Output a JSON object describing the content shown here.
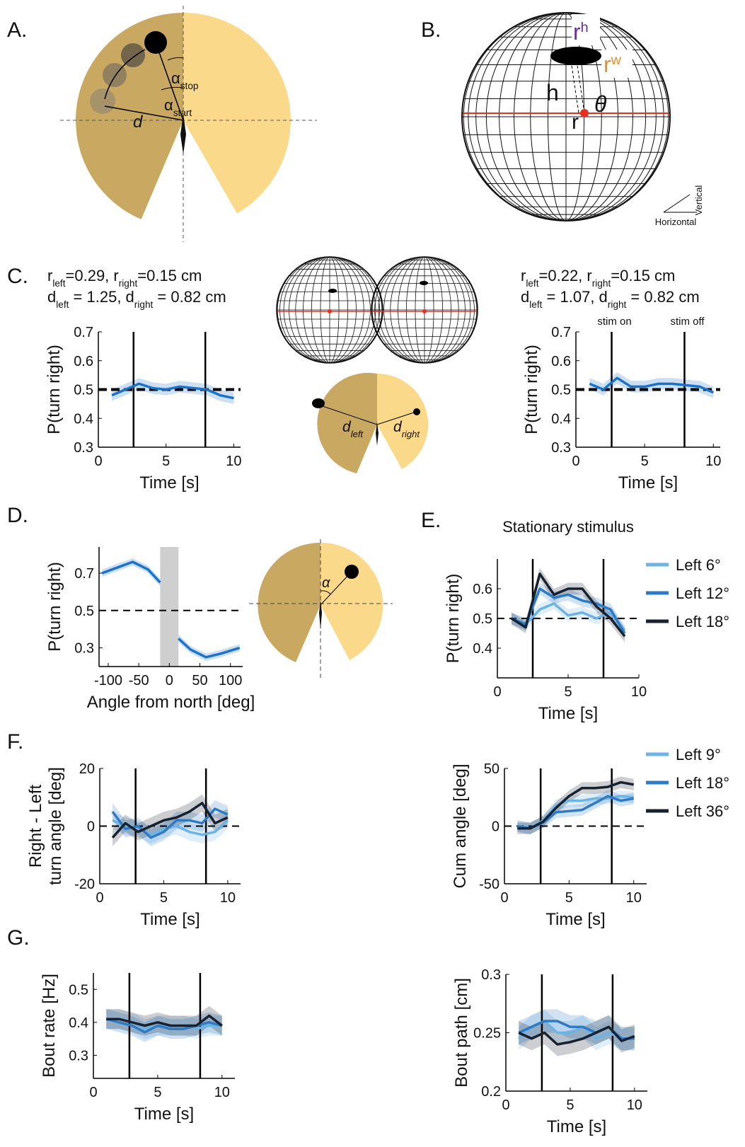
{
  "panel_labels": [
    "A.",
    "B.",
    "C.",
    "D.",
    "E.",
    "F.",
    "G."
  ],
  "panel_a": {
    "distance": "d",
    "alpha_stop": [
      "α",
      "stop"
    ],
    "alpha_start": [
      "α",
      "start"
    ]
  },
  "panel_b": {
    "r_height": [
      "r",
      "h"
    ],
    "r_width": [
      "r",
      "w"
    ],
    "height": "h",
    "theta": "θ",
    "radius": "r",
    "vertical": "Vertical",
    "horizontal": "Horizontal"
  },
  "panel_c": {
    "d_left": [
      "d",
      "left"
    ],
    "d_right": [
      "d",
      "right"
    ]
  },
  "panel_d": {
    "alpha": "α"
  },
  "chart_data": [
    {
      "type": "line",
      "annotation": [
        [
          "r",
          "left",
          "=0.29, r",
          "right",
          "=0.15 cm"
        ],
        [
          "d",
          "left",
          " = 1.25, d",
          "right",
          " = 0.82 cm"
        ]
      ],
      "xlabel": "Time [s]",
      "ylabel": [
        "P(turn right)"
      ],
      "xlim": [
        0,
        10.5
      ],
      "ylim": [
        0.3,
        0.7
      ],
      "xticks": [
        0,
        5,
        10
      ],
      "yticks": [
        0.3,
        0.4,
        0.5,
        0.6,
        0.7
      ],
      "x": [
        1,
        2,
        3,
        4,
        5,
        6,
        7,
        8,
        9,
        10
      ],
      "series": [
        {
          "color": "#1a73c8",
          "values": [
            0.48,
            0.5,
            0.52,
            0.505,
            0.5,
            0.51,
            0.505,
            0.5,
            0.48,
            0.47
          ],
          "error": 0.02
        }
      ],
      "vlines": [
        2.6,
        7.9
      ],
      "hline": 0.5
    },
    {
      "type": "line",
      "annotation": [
        [
          "r",
          "left",
          "=0.22, r",
          "right",
          "=0.15 cm"
        ],
        [
          "d",
          "left",
          " = 1.07, d",
          "right",
          " = 0.82 cm"
        ]
      ],
      "xlabel": "Time [s]",
      "ylabel": [
        "P(turn right)"
      ],
      "xlim": [
        0,
        10.5
      ],
      "ylim": [
        0.3,
        0.7
      ],
      "xticks": [
        0,
        5,
        10
      ],
      "yticks": [
        0.3,
        0.4,
        0.5,
        0.6,
        0.7
      ],
      "x": [
        1,
        2,
        3,
        4,
        5,
        6,
        7,
        8,
        9,
        10
      ],
      "series": [
        {
          "color": "#1a73c8",
          "values": [
            0.52,
            0.5,
            0.54,
            0.51,
            0.51,
            0.52,
            0.52,
            0.515,
            0.51,
            0.49
          ],
          "error": 0.02
        }
      ],
      "vlines": [
        2.6,
        7.9
      ],
      "vline_labels": [
        "stim on",
        "stim off"
      ],
      "hline": 0.5
    },
    {
      "type": "line",
      "xlabel": "Angle from north [deg]",
      "ylabel": [
        "P(turn right)"
      ],
      "xlim": [
        -115,
        120
      ],
      "ylim": [
        0.2,
        0.84
      ],
      "xticks": [
        -100,
        -50,
        0,
        50,
        100
      ],
      "yticks": [
        0.3,
        0.5,
        0.7
      ],
      "x": [
        -110,
        -85,
        -60,
        -35,
        -15,
        0,
        15,
        35,
        60,
        85,
        115
      ],
      "series": [
        {
          "color": "#1a73c8",
          "values": [
            0.7,
            0.73,
            0.76,
            0.72,
            0.65,
            null,
            0.35,
            0.29,
            0.25,
            0.27,
            0.3
          ],
          "error": 0.02
        }
      ],
      "shaded_span": [
        -15,
        15
      ],
      "hline": 0.5
    },
    {
      "type": "line",
      "title": "Stationary stimulus",
      "xlabel": "Time [s]",
      "ylabel": [
        "P(turn right)"
      ],
      "xlim": [
        0,
        10
      ],
      "ylim": [
        0.3,
        0.7
      ],
      "xticks": [
        0,
        5,
        10
      ],
      "yticks": [
        0.4,
        0.5,
        0.6
      ],
      "x": [
        1,
        2,
        3,
        4,
        5,
        6,
        7,
        8,
        9
      ],
      "series": [
        {
          "name": "Left 6°",
          "color": "#6db3e4",
          "values": [
            0.5,
            0.48,
            0.53,
            0.55,
            0.51,
            0.52,
            0.5,
            0.52,
            0.46
          ],
          "error": 0.02
        },
        {
          "name": "Left 12°",
          "color": "#2e7bc4",
          "values": [
            0.5,
            0.48,
            0.6,
            0.57,
            0.58,
            0.56,
            0.55,
            0.53,
            0.45
          ],
          "error": 0.02
        },
        {
          "name": "Left 18°",
          "color": "#18212e",
          "values": [
            0.5,
            0.47,
            0.65,
            0.58,
            0.6,
            0.6,
            0.54,
            0.5,
            0.44
          ],
          "error": 0.02
        }
      ],
      "vlines": [
        2.5,
        7.5
      ],
      "hline": 0.5,
      "legend": "right"
    },
    {
      "type": "line",
      "xlabel": "Time [s]",
      "ylabel": [
        "Right - Left",
        "turn angle [deg]"
      ],
      "xlim": [
        0,
        11
      ],
      "ylim": [
        -20,
        20
      ],
      "xticks": [
        0,
        5,
        10
      ],
      "yticks": [
        -20,
        0,
        20
      ],
      "x": [
        1,
        2,
        3,
        4,
        5,
        6,
        7,
        8,
        9,
        10
      ],
      "series": [
        {
          "color": "#6db3e4",
          "values": [
            2,
            0,
            -1,
            -3,
            -1,
            0,
            -2,
            -3,
            -2,
            2
          ],
          "error": 3
        },
        {
          "color": "#2e7bc4",
          "values": [
            5,
            -1,
            0,
            -4,
            -2,
            2,
            2,
            1,
            6,
            4
          ],
          "error": 3
        },
        {
          "color": "#18212e",
          "values": [
            -4,
            1,
            -2,
            0,
            2,
            3,
            5,
            8,
            1,
            3
          ],
          "error": 3
        }
      ],
      "vlines": [
        2.8,
        8.3
      ],
      "hline": 0
    },
    {
      "type": "line",
      "xlabel": "Time [s]",
      "ylabel": [
        "Cum angle [deg]"
      ],
      "xlim": [
        0,
        11
      ],
      "ylim": [
        -50,
        50
      ],
      "xticks": [
        0,
        5,
        10
      ],
      "yticks": [
        -50,
        0,
        50
      ],
      "x": [
        1,
        2,
        3,
        4,
        5,
        6,
        7,
        8,
        9,
        10
      ],
      "series": [
        {
          "name": "Left 9°",
          "color": "#6db3e4",
          "values": [
            0,
            -2,
            5,
            18,
            22,
            22,
            24,
            24,
            26,
            25
          ],
          "error": 5
        },
        {
          "name": "Left 18°",
          "color": "#2e7bc4",
          "values": [
            0,
            -2,
            3,
            12,
            13,
            14,
            20,
            26,
            22,
            24
          ],
          "error": 5
        },
        {
          "name": "Left 36°",
          "color": "#18212e",
          "values": [
            -2,
            -2,
            4,
            16,
            26,
            33,
            33,
            34,
            38,
            36
          ],
          "error": 5
        }
      ],
      "vlines": [
        2.8,
        8.3
      ],
      "hline": 0,
      "legend": "right"
    },
    {
      "type": "line",
      "xlabel": "Time [s]",
      "ylabel": [
        "Bout rate [Hz]"
      ],
      "xlim": [
        0,
        11
      ],
      "ylim": [
        0.23,
        0.55
      ],
      "xticks": [
        0,
        5,
        10
      ],
      "yticks": [
        0.3,
        0.4,
        0.5
      ],
      "x": [
        1,
        2,
        3,
        4,
        5,
        6,
        7,
        8,
        9,
        10
      ],
      "series": [
        {
          "color": "#6db3e4",
          "values": [
            0.41,
            0.41,
            0.4,
            0.38,
            0.39,
            0.39,
            0.39,
            0.38,
            0.39,
            0.39
          ],
          "error": 0.03
        },
        {
          "color": "#2e7bc4",
          "values": [
            0.41,
            0.4,
            0.39,
            0.37,
            0.39,
            0.38,
            0.38,
            0.39,
            0.4,
            0.39
          ],
          "error": 0.03
        },
        {
          "color": "#18212e",
          "values": [
            0.41,
            0.41,
            0.4,
            0.39,
            0.4,
            0.39,
            0.39,
            0.39,
            0.42,
            0.39
          ],
          "error": 0.03
        }
      ],
      "vlines": [
        2.8,
        8.3
      ]
    },
    {
      "type": "line",
      "xlabel": "Time [s]",
      "ylabel": [
        "Bout path [cm]"
      ],
      "xlim": [
        0,
        11
      ],
      "ylim": [
        0.2,
        0.3
      ],
      "xticks": [
        0,
        5,
        10
      ],
      "yticks": [
        0.2,
        0.25,
        0.3
      ],
      "x": [
        1,
        2,
        3,
        4,
        5,
        6,
        7,
        8,
        9,
        10
      ],
      "series": [
        {
          "color": "#6db3e4",
          "values": [
            0.245,
            0.255,
            0.26,
            0.25,
            0.25,
            0.255,
            0.245,
            0.25,
            0.245,
            0.245
          ],
          "error": 0.01
        },
        {
          "color": "#2e7bc4",
          "values": [
            0.25,
            0.255,
            0.26,
            0.26,
            0.255,
            0.255,
            0.25,
            0.255,
            0.245,
            0.245
          ],
          "error": 0.01
        },
        {
          "color": "#18212e",
          "values": [
            0.25,
            0.245,
            0.25,
            0.24,
            0.242,
            0.245,
            0.25,
            0.255,
            0.243,
            0.247
          ],
          "error": 0.01
        }
      ],
      "vlines": [
        2.8,
        8.3
      ]
    }
  ]
}
